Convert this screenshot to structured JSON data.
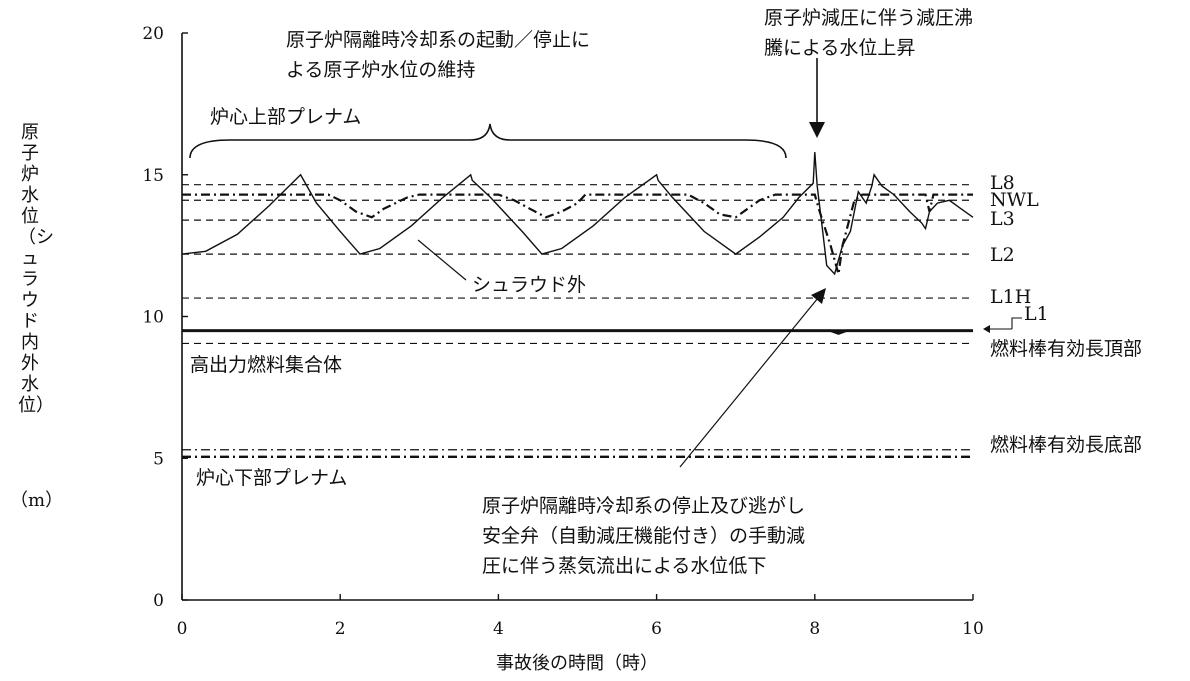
{
  "chart_data": {
    "type": "line",
    "xlabel": "事故後の時間（時）",
    "ylabel": "原子炉水位（シュラウド内外水位）",
    "yunit": "（m）",
    "xlim": [
      0,
      10
    ],
    "ylim": [
      0,
      20
    ],
    "xticks": [
      "0",
      "2",
      "4",
      "6",
      "8",
      "10"
    ],
    "yticks": [
      "0",
      "5",
      "10",
      "15",
      "20"
    ],
    "reference_levels": [
      {
        "label": "L8",
        "y": 14.65,
        "style": "dash"
      },
      {
        "label": "NWL",
        "y": 14.1,
        "style": "dash"
      },
      {
        "label": "L3",
        "y": 13.4,
        "style": "dash"
      },
      {
        "label": "L2",
        "y": 12.2,
        "style": "dash"
      },
      {
        "label": "L1H",
        "y": 10.65,
        "style": "dash"
      },
      {
        "label": "L1",
        "y": 9.5,
        "style": "solid"
      },
      {
        "label": "燃料棒有効長頂部",
        "y": 9.05,
        "style": "dash"
      },
      {
        "label": "燃料棒有効長底部",
        "y": 5.3,
        "style": "dashdot"
      },
      {
        "label": "",
        "y": 5.05,
        "style": "dashdot"
      }
    ],
    "series": [
      {
        "name": "シュラウド外",
        "x": [
          0,
          0.3,
          0.7,
          1.1,
          1.5,
          1.52,
          1.7,
          2.0,
          2.25,
          2.5,
          2.9,
          3.3,
          3.65,
          3.67,
          3.9,
          4.3,
          4.55,
          4.8,
          5.2,
          5.6,
          6.0,
          6.02,
          6.2,
          6.6,
          7.0,
          7.3,
          7.6,
          7.8,
          7.98,
          8.0,
          8.03,
          8.1,
          8.15,
          8.25,
          8.35,
          8.45,
          8.55,
          8.65,
          8.72,
          8.75,
          8.85,
          9.0,
          9.2,
          9.35,
          9.4,
          9.45,
          9.55,
          9.7,
          9.85,
          10.0
        ],
        "y": [
          12.2,
          12.3,
          12.9,
          13.9,
          15.0,
          14.9,
          14.0,
          13.0,
          12.2,
          12.4,
          13.2,
          14.2,
          15.0,
          14.8,
          14.2,
          13.0,
          12.2,
          12.4,
          13.2,
          14.2,
          15.0,
          14.8,
          14.2,
          13.0,
          12.2,
          12.8,
          13.5,
          14.2,
          14.7,
          15.8,
          14.6,
          13.0,
          11.8,
          11.5,
          12.5,
          13.0,
          14.4,
          14.0,
          14.6,
          15.0,
          14.6,
          14.3,
          13.7,
          13.3,
          13.1,
          13.7,
          14.0,
          14.1,
          13.8,
          13.5
        ]
      },
      {
        "name": "",
        "x": [
          0,
          0.1,
          0.9,
          1.15,
          1.45,
          1.6,
          1.75,
          1.85,
          2.0,
          2.2,
          2.4,
          2.55,
          2.7,
          2.85,
          3.0,
          3.1,
          3.3,
          3.5,
          3.65,
          3.8,
          4.0,
          4.2,
          4.4,
          4.6,
          4.8,
          5.0,
          5.1,
          5.4,
          5.7,
          6.0,
          6.2,
          6.4,
          6.6,
          6.8,
          7.0,
          7.15,
          7.3,
          7.5,
          7.7,
          8.0,
          8.05,
          8.2,
          8.3,
          8.35,
          8.5,
          8.6,
          9.0,
          9.4,
          9.45,
          9.5,
          10.0
        ],
        "y": [
          14.3,
          14.3,
          14.3,
          14.3,
          14.3,
          14.3,
          14.3,
          14.3,
          14.1,
          13.7,
          13.5,
          13.8,
          14.0,
          14.2,
          14.3,
          14.3,
          14.3,
          14.3,
          14.3,
          14.3,
          14.3,
          14.1,
          13.8,
          13.5,
          13.7,
          14.0,
          14.3,
          14.3,
          14.3,
          14.3,
          14.3,
          14.3,
          14.0,
          13.6,
          13.5,
          13.8,
          14.1,
          14.3,
          14.3,
          14.3,
          13.8,
          12.5,
          11.5,
          12.5,
          14.1,
          14.3,
          14.3,
          14.3,
          13.7,
          14.3,
          14.3
        ]
      },
      {
        "name": "高出力燃料集合体",
        "x": [
          0,
          8.2,
          8.3,
          8.4,
          10.0
        ],
        "y": [
          9.5,
          9.5,
          9.4,
          9.5,
          9.5
        ]
      }
    ],
    "annotations": {
      "cycle_line1": "原子炉隔離時冷却系の起動／停止に",
      "cycle_line2": "よる原子炉水位の維持",
      "upper_plenum": "炉心上部プレナム",
      "shroud_outside": "シュラウド外",
      "high_power": "高出力燃料集合体",
      "lower_plenum": "炉心下部プレナム",
      "depress_line1": "原子炉減圧に伴う減圧沸",
      "depress_line2": "騰による水位上昇",
      "drop_line1": "原子炉隔離時冷却系の停止及び逃がし",
      "drop_line2": "安全弁（自動減圧機能付き）の手動減",
      "drop_line3": "圧に伴う蒸気流出による水位低下"
    }
  }
}
